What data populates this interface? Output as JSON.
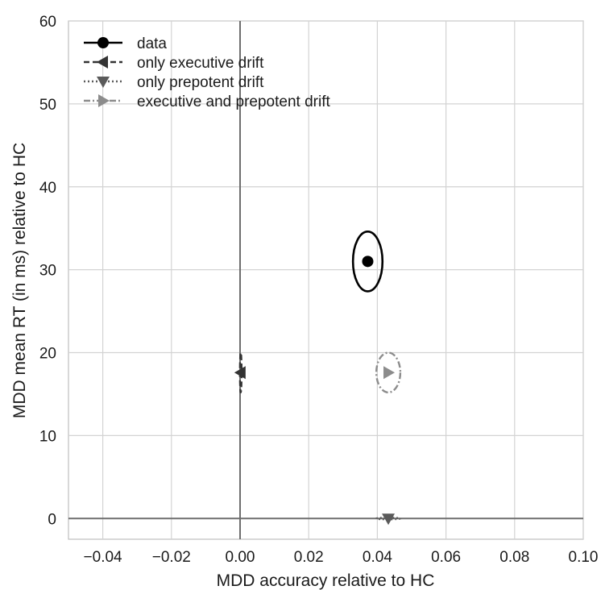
{
  "chart_data": {
    "type": "scatter",
    "title": "",
    "xlabel": "MDD accuracy relative to HC",
    "ylabel": "MDD mean RT (in ms) relative to HC",
    "xlim": [
      -0.05,
      0.1
    ],
    "ylim": [
      -2.5,
      60
    ],
    "x_ticks": [
      -0.04,
      -0.02,
      0.0,
      0.02,
      0.04,
      0.06,
      0.08,
      0.1
    ],
    "x_tick_labels": [
      "−0.04",
      "−0.02",
      "0.00",
      "0.02",
      "0.04",
      "0.06",
      "0.08",
      "0.10"
    ],
    "y_ticks": [
      0,
      10,
      20,
      30,
      40,
      50,
      60
    ],
    "y_tick_labels": [
      "0",
      "10",
      "20",
      "30",
      "40",
      "50",
      "60"
    ],
    "grid": true,
    "legend_position": "top-left",
    "reference_lines": {
      "x": 0,
      "y": 0
    },
    "series": [
      {
        "name": "data",
        "marker": "circle",
        "line_style": "solid",
        "color": "#000000",
        "points": [
          {
            "x": 0.0372,
            "y": 31.0
          }
        ],
        "uncertainty": {
          "x": 0.0043,
          "y": 3.6
        }
      },
      {
        "name": "only executive drift",
        "marker": "triangle-left",
        "line_style": "dashed",
        "color": "#333333",
        "points": [
          {
            "x": 0.0002,
            "y": 17.6
          }
        ],
        "uncertainty": {
          "x": 0.0,
          "y": 2.4
        }
      },
      {
        "name": "only prepotent drift",
        "marker": "triangle-down",
        "line_style": "dotted",
        "color": "#5a5a5a",
        "points": [
          {
            "x": 0.0432,
            "y": 0.0
          }
        ],
        "uncertainty": {
          "x": 0.0035,
          "y": 0.0
        }
      },
      {
        "name": "executive and prepotent drift",
        "marker": "triangle-right",
        "line_style": "dashdot",
        "color": "#8c8c8c",
        "points": [
          {
            "x": 0.0432,
            "y": 17.6
          }
        ],
        "uncertainty": {
          "x": 0.0035,
          "y": 2.4
        }
      }
    ]
  }
}
